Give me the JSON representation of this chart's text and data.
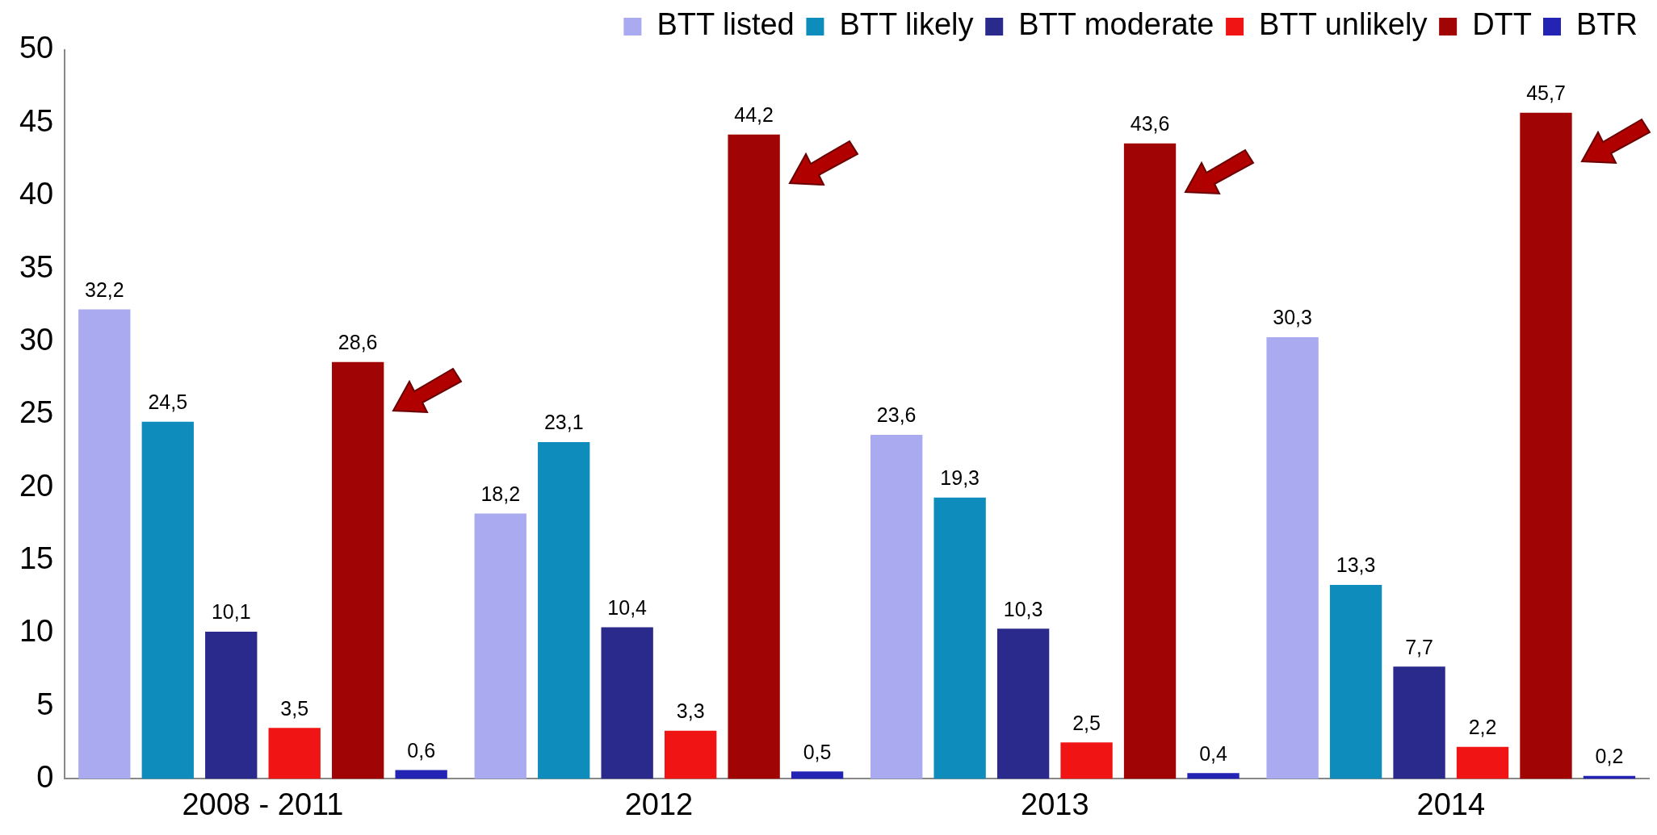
{
  "chart_data": {
    "type": "bar",
    "categories": [
      "2008 - 2011",
      "2012",
      "2013",
      "2014"
    ],
    "series": [
      {
        "name": "BTT listed",
        "color": "#a9aaf0",
        "values": [
          32.2,
          18.2,
          23.6,
          30.3
        ],
        "value_labels": [
          "32,2",
          "18,2",
          "23,6",
          "30,3"
        ]
      },
      {
        "name": "BTT likely",
        "color": "#0e8cbc",
        "values": [
          24.5,
          23.1,
          19.3,
          13.3
        ],
        "value_labels": [
          "24,5",
          "23,1",
          "19,3",
          "13,3"
        ]
      },
      {
        "name": "BTT moderate",
        "color": "#2a2a8c",
        "values": [
          10.1,
          10.4,
          10.3,
          7.7
        ],
        "value_labels": [
          "10,1",
          "10,4",
          "10,3",
          "7,7"
        ]
      },
      {
        "name": "BTT unlikely",
        "color": "#f01414",
        "values": [
          3.5,
          3.3,
          2.5,
          2.2
        ],
        "value_labels": [
          "3,5",
          "3,3",
          "2,5",
          "2,2"
        ]
      },
      {
        "name": "DTT",
        "color": "#a00404",
        "values": [
          28.6,
          44.2,
          43.6,
          45.7
        ],
        "value_labels": [
          "28,6",
          "44,2",
          "43,6",
          "45,7"
        ]
      },
      {
        "name": "BTR",
        "color": "#2424b4",
        "values": [
          0.6,
          0.5,
          0.4,
          0.2
        ],
        "value_labels": [
          "0,6",
          "0,5",
          "0,4",
          "0,2"
        ]
      }
    ],
    "ylim": [
      0,
      50
    ],
    "yticks": [
      0,
      5,
      10,
      15,
      20,
      25,
      30,
      35,
      40,
      45,
      50
    ],
    "grid": false,
    "legend": "top right"
  }
}
